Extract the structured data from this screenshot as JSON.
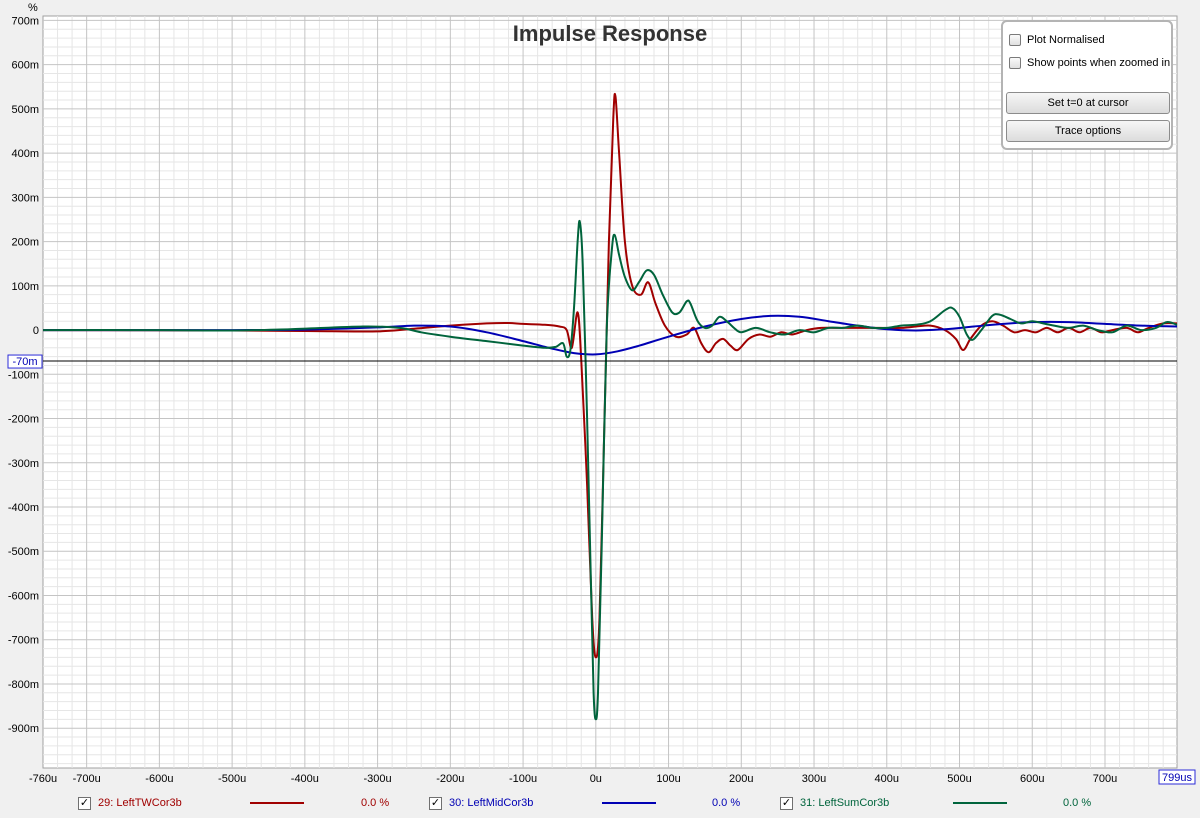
{
  "chart_data": {
    "type": "line",
    "title": "Impulse Response",
    "ylabel": "%",
    "xlim": [
      -760,
      799
    ],
    "ylim": [
      -990,
      710
    ],
    "x_ticks": [
      {
        "v": -760,
        "label": "-760u"
      },
      {
        "v": -700,
        "label": "-700u"
      },
      {
        "v": -600,
        "label": "-600u"
      },
      {
        "v": -500,
        "label": "-500u"
      },
      {
        "v": -400,
        "label": "-400u"
      },
      {
        "v": -300,
        "label": "-300u"
      },
      {
        "v": -200,
        "label": "-200u"
      },
      {
        "v": -100,
        "label": "-100u"
      },
      {
        "v": 0,
        "label": "0u"
      },
      {
        "v": 100,
        "label": "100u"
      },
      {
        "v": 200,
        "label": "200u"
      },
      {
        "v": 300,
        "label": "300u"
      },
      {
        "v": 400,
        "label": "400u"
      },
      {
        "v": 500,
        "label": "500u"
      },
      {
        "v": 600,
        "label": "600u"
      },
      {
        "v": 700,
        "label": "700u"
      }
    ],
    "x_end_label": "799us",
    "y_ticks": [
      {
        "v": 700,
        "label": "700m"
      },
      {
        "v": 600,
        "label": "600m"
      },
      {
        "v": 500,
        "label": "500m"
      },
      {
        "v": 400,
        "label": "400m"
      },
      {
        "v": 300,
        "label": "300m"
      },
      {
        "v": 200,
        "label": "200m"
      },
      {
        "v": 100,
        "label": "100m"
      },
      {
        "v": 0,
        "label": "0"
      },
      {
        "v": -100,
        "label": "-100m"
      },
      {
        "v": -200,
        "label": "-200m"
      },
      {
        "v": -300,
        "label": "-300m"
      },
      {
        "v": -400,
        "label": "-400m"
      },
      {
        "v": -500,
        "label": "-500m"
      },
      {
        "v": -600,
        "label": "-600m"
      },
      {
        "v": -700,
        "label": "-700m"
      },
      {
        "v": -800,
        "label": "-800m"
      },
      {
        "v": -900,
        "label": "-900m"
      }
    ],
    "cursor": {
      "y": -70,
      "label": "-70m"
    },
    "grid": true,
    "series": [
      {
        "name": "29: LeftTWCor3b",
        "color": "#a00000",
        "pct": "0.0 %",
        "points": [
          [
            -760,
            0
          ],
          [
            -500,
            -1
          ],
          [
            -400,
            -2
          ],
          [
            -300,
            -3
          ],
          [
            -250,
            3
          ],
          [
            -200,
            10
          ],
          [
            -150,
            15
          ],
          [
            -120,
            16
          ],
          [
            -100,
            14
          ],
          [
            -70,
            12
          ],
          [
            -50,
            8
          ],
          [
            -40,
            0
          ],
          [
            -33,
            -40
          ],
          [
            -25,
            40
          ],
          [
            -20,
            -70
          ],
          [
            -12,
            -350
          ],
          [
            -5,
            -650
          ],
          [
            0,
            -740
          ],
          [
            5,
            -650
          ],
          [
            12,
            -200
          ],
          [
            18,
            200
          ],
          [
            24,
            480
          ],
          [
            27,
            528
          ],
          [
            32,
            400
          ],
          [
            40,
            200
          ],
          [
            50,
            100
          ],
          [
            62,
            80
          ],
          [
            72,
            108
          ],
          [
            82,
            60
          ],
          [
            95,
            10
          ],
          [
            110,
            -15
          ],
          [
            125,
            -10
          ],
          [
            135,
            5
          ],
          [
            145,
            -30
          ],
          [
            155,
            -50
          ],
          [
            165,
            -30
          ],
          [
            175,
            -20
          ],
          [
            185,
            -35
          ],
          [
            195,
            -45
          ],
          [
            210,
            -20
          ],
          [
            225,
            -10
          ],
          [
            240,
            -15
          ],
          [
            255,
            -5
          ],
          [
            270,
            -10
          ],
          [
            290,
            0
          ],
          [
            310,
            5
          ],
          [
            330,
            5
          ],
          [
            360,
            5
          ],
          [
            390,
            5
          ],
          [
            420,
            5
          ],
          [
            440,
            8
          ],
          [
            460,
            10
          ],
          [
            480,
            0
          ],
          [
            495,
            -20
          ],
          [
            505,
            -45
          ],
          [
            515,
            -20
          ],
          [
            530,
            10
          ],
          [
            545,
            20
          ],
          [
            560,
            10
          ],
          [
            575,
            -5
          ],
          [
            590,
            0
          ],
          [
            605,
            -5
          ],
          [
            620,
            5
          ],
          [
            635,
            -5
          ],
          [
            650,
            5
          ],
          [
            665,
            -5
          ],
          [
            680,
            5
          ],
          [
            695,
            -5
          ],
          [
            710,
            0
          ],
          [
            730,
            5
          ],
          [
            745,
            -5
          ],
          [
            760,
            5
          ],
          [
            780,
            15
          ],
          [
            799,
            15
          ]
        ]
      },
      {
        "name": "30: LeftMidCor3b",
        "color": "#0000b4",
        "pct": "0.0 %",
        "points": [
          [
            -760,
            0
          ],
          [
            -600,
            0
          ],
          [
            -500,
            0
          ],
          [
            -400,
            1
          ],
          [
            -300,
            6
          ],
          [
            -250,
            10
          ],
          [
            -200,
            8
          ],
          [
            -150,
            -5
          ],
          [
            -100,
            -25
          ],
          [
            -60,
            -42
          ],
          [
            -30,
            -52
          ],
          [
            0,
            -55
          ],
          [
            30,
            -48
          ],
          [
            60,
            -35
          ],
          [
            100,
            -15
          ],
          [
            150,
            8
          ],
          [
            200,
            25
          ],
          [
            240,
            32
          ],
          [
            280,
            30
          ],
          [
            320,
            20
          ],
          [
            360,
            10
          ],
          [
            400,
            2
          ],
          [
            440,
            -1
          ],
          [
            480,
            2
          ],
          [
            520,
            8
          ],
          [
            560,
            14
          ],
          [
            600,
            18
          ],
          [
            650,
            18
          ],
          [
            700,
            14
          ],
          [
            750,
            10
          ],
          [
            799,
            8
          ]
        ]
      },
      {
        "name": "31: LeftSumCor3b",
        "color": "#00643c",
        "pct": "0.0 %",
        "points": [
          [
            -760,
            0
          ],
          [
            -600,
            0
          ],
          [
            -500,
            -1
          ],
          [
            -420,
            2
          ],
          [
            -320,
            8
          ],
          [
            -270,
            5
          ],
          [
            -240,
            -5
          ],
          [
            -200,
            -15
          ],
          [
            -150,
            -25
          ],
          [
            -100,
            -35
          ],
          [
            -70,
            -40
          ],
          [
            -55,
            -38
          ],
          [
            -45,
            -30
          ],
          [
            -40,
            -60
          ],
          [
            -35,
            -45
          ],
          [
            -30,
            50
          ],
          [
            -25,
            200
          ],
          [
            -22,
            245
          ],
          [
            -18,
            150
          ],
          [
            -12,
            -200
          ],
          [
            -7,
            -550
          ],
          [
            -3,
            -820
          ],
          [
            0,
            -880
          ],
          [
            3,
            -820
          ],
          [
            8,
            -500
          ],
          [
            15,
            0
          ],
          [
            22,
            180
          ],
          [
            26,
            215
          ],
          [
            32,
            170
          ],
          [
            40,
            120
          ],
          [
            50,
            90
          ],
          [
            60,
            110
          ],
          [
            70,
            135
          ],
          [
            80,
            125
          ],
          [
            92,
            80
          ],
          [
            105,
            40
          ],
          [
            115,
            40
          ],
          [
            125,
            65
          ],
          [
            130,
            60
          ],
          [
            140,
            20
          ],
          [
            150,
            5
          ],
          [
            160,
            10
          ],
          [
            170,
            30
          ],
          [
            180,
            20
          ],
          [
            190,
            5
          ],
          [
            200,
            -5
          ],
          [
            220,
            5
          ],
          [
            240,
            -5
          ],
          [
            260,
            -10
          ],
          [
            280,
            0
          ],
          [
            300,
            -5
          ],
          [
            320,
            5
          ],
          [
            340,
            5
          ],
          [
            360,
            10
          ],
          [
            380,
            5
          ],
          [
            400,
            5
          ],
          [
            420,
            10
          ],
          [
            440,
            12
          ],
          [
            460,
            20
          ],
          [
            480,
            45
          ],
          [
            490,
            50
          ],
          [
            500,
            30
          ],
          [
            510,
            -10
          ],
          [
            518,
            -22
          ],
          [
            530,
            0
          ],
          [
            545,
            32
          ],
          [
            555,
            35
          ],
          [
            570,
            25
          ],
          [
            585,
            15
          ],
          [
            600,
            20
          ],
          [
            615,
            15
          ],
          [
            630,
            10
          ],
          [
            650,
            5
          ],
          [
            670,
            10
          ],
          [
            690,
            0
          ],
          [
            710,
            -5
          ],
          [
            730,
            10
          ],
          [
            750,
            0
          ],
          [
            770,
            5
          ],
          [
            785,
            18
          ],
          [
            799,
            12
          ]
        ]
      }
    ]
  },
  "options": {
    "plot_normalised": "Plot Normalised",
    "show_points": "Show points when zoomed in",
    "set_t0": "Set t=0 at cursor",
    "trace_options": "Trace options"
  },
  "legend": [
    {
      "name": "29: LeftTWCor3b",
      "pct": "0.0 %",
      "color": "#a00000",
      "check": "✓"
    },
    {
      "name": "30: LeftMidCor3b",
      "pct": "0.0 %",
      "color": "#0000b4",
      "check": "✓"
    },
    {
      "name": "31: LeftSumCor3b",
      "pct": "0.0 %",
      "color": "#00643c",
      "check": "✓"
    }
  ]
}
